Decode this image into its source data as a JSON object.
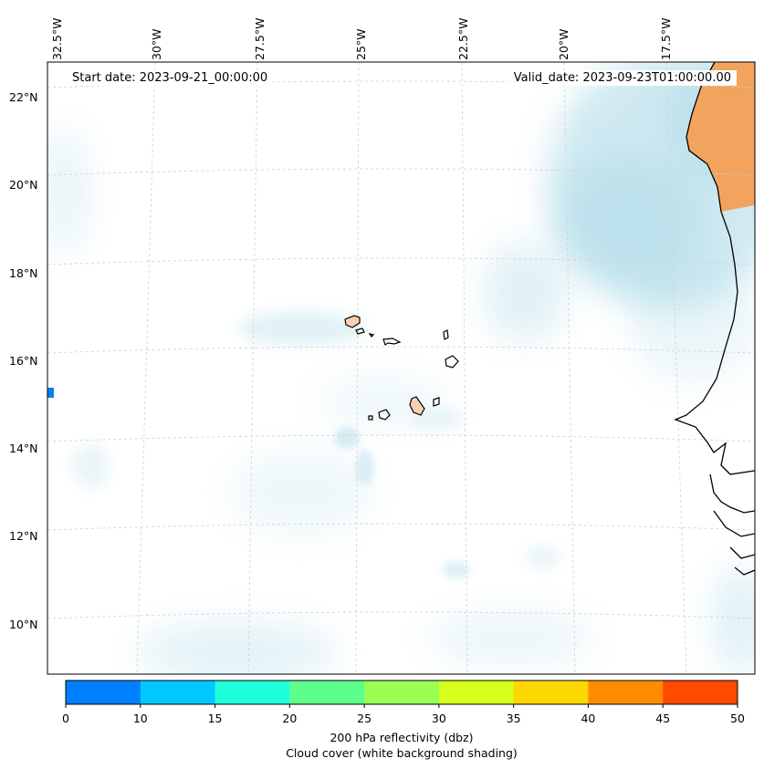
{
  "map": {
    "start_date": "Start date: 2023-09-21_00:00:00",
    "valid_date": "Valid_date: 2023-09-23T01:00:00.00",
    "lon_labels": [
      "32.5°W",
      "30°W",
      "27.5°W",
      "25°W",
      "22.5°W",
      "20°W",
      "17.5°W"
    ],
    "lat_labels": [
      "22°N",
      "20°N",
      "18°N",
      "16°N",
      "14°N",
      "12°N",
      "10°N"
    ],
    "colors": {
      "cloud": "#a8d8e6",
      "land_warm": "#f2a35e",
      "island_fill": "#f7cfb4",
      "coastline": "#000000",
      "echo_blue": "#0b7ff2"
    }
  },
  "colorbar": {
    "ticks": [
      "0",
      "10",
      "15",
      "20",
      "25",
      "30",
      "35",
      "40",
      "45",
      "50"
    ],
    "colors": [
      "#0080ff",
      "#00c8ff",
      "#1effd9",
      "#5dff8a",
      "#99ff55",
      "#d5ff1c",
      "#ffd700",
      "#ff8c00",
      "#ff4b00"
    ],
    "label": "200 hPa reflectivity (dbz)",
    "sublabel": "Cloud cover (white background shading)"
  }
}
